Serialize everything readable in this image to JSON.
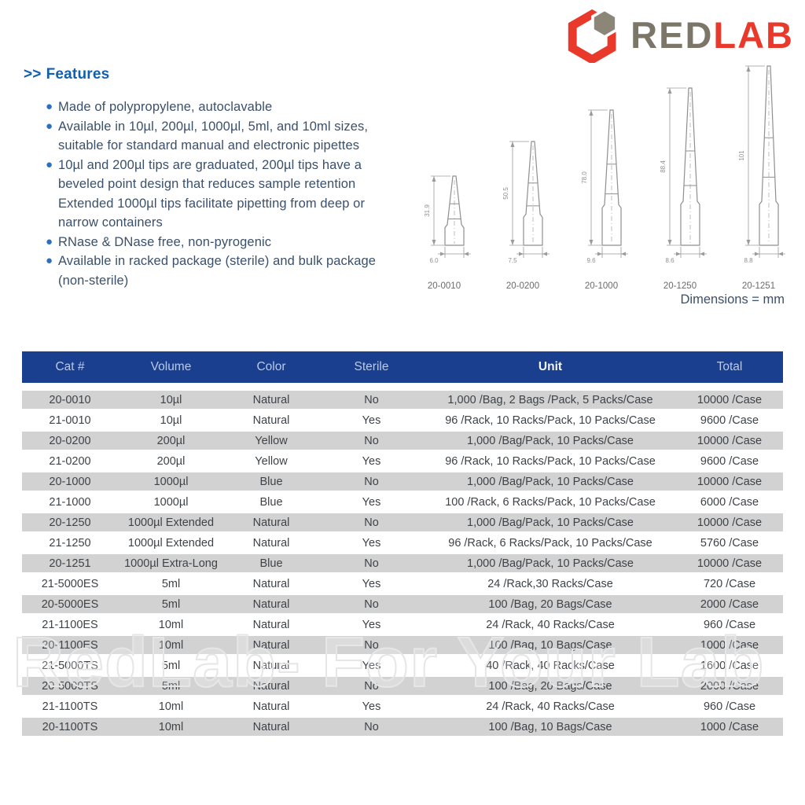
{
  "logo": {
    "word_red": "RED",
    "word_lab": "LAB",
    "colors": {
      "red": "#e8392b",
      "gray": "#7c7668"
    }
  },
  "features": {
    "heading_prefix": ">>",
    "heading": "Features",
    "items": [
      {
        "bullet": true,
        "text": "Made of polypropylene, autoclavable"
      },
      {
        "bullet": true,
        "text": "Available in 10µl, 200µl, 1000µl, 5ml, and 10ml sizes, suitable for standard manual and electronic pipettes"
      },
      {
        "bullet": true,
        "text": "10µl and 200µl tips are graduated, 200µl tips have a beveled point design that reduces sample retention"
      },
      {
        "bullet": false,
        "text": "Extended 1000µl tips facilitate pipetting from deep or narrow containers"
      },
      {
        "bullet": true,
        "text": "RNase & DNase free, non-pyrogenic"
      },
      {
        "bullet": true,
        "text": "Available in racked package (sterile) and bulk package (non-sterile)"
      }
    ]
  },
  "drawings": {
    "dimensions_note": "Dimensions = mm",
    "tips": [
      {
        "cat": "20-0010",
        "height_mm": "31.9",
        "width_mm": "6.0"
      },
      {
        "cat": "20-0200",
        "height_mm": "50.5",
        "width_mm": "7.5"
      },
      {
        "cat": "20-1000",
        "height_mm": "78.0",
        "width_mm": "9.6"
      },
      {
        "cat": "20-1250",
        "height_mm": "88.4",
        "width_mm": "8.6"
      },
      {
        "cat": "20-1251",
        "height_mm": "101",
        "width_mm": "8.8"
      }
    ]
  },
  "table": {
    "headers": [
      "Cat #",
      "Volume",
      "Color",
      "Sterile",
      "Unit",
      "Total"
    ],
    "rows": [
      {
        "cat": "20-0010",
        "volume": "10µl",
        "color": "Natural",
        "sterile": "No",
        "unit": "1,000 /Bag, 2 Bags /Pack, 5 Packs/Case",
        "total": "10000 /Case"
      },
      {
        "cat": "21-0010",
        "volume": "10µl",
        "color": "Natural",
        "sterile": "Yes",
        "unit": "96 /Rack, 10 Racks/Pack, 10 Packs/Case",
        "total": "9600 /Case"
      },
      {
        "cat": "20-0200",
        "volume": "200µl",
        "color": "Yellow",
        "sterile": "No",
        "unit": "1,000 /Bag/Pack, 10 Packs/Case",
        "total": "10000 /Case"
      },
      {
        "cat": "21-0200",
        "volume": "200µl",
        "color": "Yellow",
        "sterile": "Yes",
        "unit": "96 /Rack, 10 Racks/Pack, 10 Packs/Case",
        "total": "9600 /Case"
      },
      {
        "cat": "20-1000",
        "volume": "1000µl",
        "color": "Blue",
        "sterile": "No",
        "unit": "1,000 /Bag/Pack, 10 Packs/Case",
        "total": "10000 /Case"
      },
      {
        "cat": "21-1000",
        "volume": "1000µl",
        "color": "Blue",
        "sterile": "Yes",
        "unit": "100 /Rack, 6 Racks/Pack, 10 Packs/Case",
        "total": "6000 /Case"
      },
      {
        "cat": "20-1250",
        "volume": "1000µl Extended",
        "color": "Natural",
        "sterile": "No",
        "unit": "1,000 /Bag/Pack, 10 Packs/Case",
        "total": "10000 /Case"
      },
      {
        "cat": "21-1250",
        "volume": "1000µl Extended",
        "color": "Natural",
        "sterile": "Yes",
        "unit": "96 /Rack, 6 Racks/Pack, 10 Packs/Case",
        "total": "5760 /Case"
      },
      {
        "cat": "20-1251",
        "volume": "1000µl Extra-Long",
        "color": "Blue",
        "sterile": "No",
        "unit": "1,000 /Bag/Pack, 10 Packs/Case",
        "total": "10000 /Case"
      },
      {
        "cat": "21-5000ES",
        "volume": "5ml",
        "color": "Natural",
        "sterile": "Yes",
        "unit": "24 /Rack,30 Racks/Case",
        "total": "720 /Case"
      },
      {
        "cat": "20-5000ES",
        "volume": "5ml",
        "color": "Natural",
        "sterile": "No",
        "unit": "100 /Bag, 20 Bags/Case",
        "total": "2000 /Case"
      },
      {
        "cat": "21-1100ES",
        "volume": "10ml",
        "color": "Natural",
        "sterile": "Yes",
        "unit": "24 /Rack, 40 Racks/Case",
        "total": "960 /Case"
      },
      {
        "cat": "20-1100ES",
        "volume": "10ml",
        "color": "Natural",
        "sterile": "No",
        "unit": "100 /Bag, 10 Bags/Case",
        "total": "1000 /Case"
      },
      {
        "cat": "21-5000TS",
        "volume": "5ml",
        "color": "Natural",
        "sterile": "Yes",
        "unit": "40 /Rack, 40 Racks/Case",
        "total": "1600 /Case"
      },
      {
        "cat": "20-5000TS",
        "volume": "5ml",
        "color": "Natural",
        "sterile": "No",
        "unit": "100 /Bag, 20 Bags/Case",
        "total": "2000 /Case"
      },
      {
        "cat": "21-1100TS",
        "volume": "10ml",
        "color": "Natural",
        "sterile": "Yes",
        "unit": "24 /Rack, 40 Racks/Case",
        "total": "960 /Case"
      },
      {
        "cat": "20-1100TS",
        "volume": "10ml",
        "color": "Natural",
        "sterile": "No",
        "unit": "100 /Bag, 10 Bags/Case",
        "total": "1000 /Case"
      }
    ],
    "colors": {
      "header_blue": "#1a3f8f",
      "row_gray": "#d2d2d2"
    }
  },
  "watermark": "RedLab- For Your Lab"
}
